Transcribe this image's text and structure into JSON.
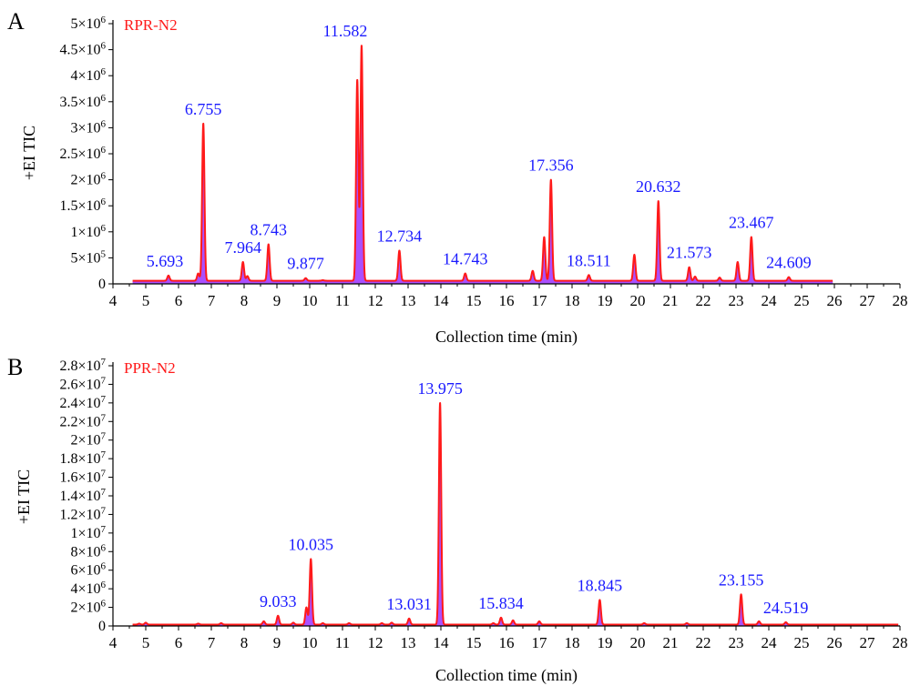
{
  "colors": {
    "trace": "#ff1a1a",
    "fill": "#9b30ff",
    "peak_label": "#1a1aff",
    "sample_label": "#ff1a1a",
    "axis": "#000000"
  },
  "chart_data": [
    {
      "type": "line",
      "panel_letter": "A",
      "sample": "RPR-N2",
      "xlabel": "Collection time (min)",
      "ylabel": "+EI TIC",
      "xlim": [
        4,
        28
      ],
      "ylim": [
        0,
        5000000
      ],
      "x_ticks": [
        4,
        5,
        6,
        7,
        8,
        9,
        10,
        11,
        12,
        13,
        14,
        15,
        16,
        17,
        18,
        19,
        20,
        21,
        22,
        23,
        24,
        25,
        26,
        27,
        28
      ],
      "x_tick_labels": [
        "4",
        "5",
        "6",
        "7",
        "8",
        "9",
        "10",
        "11",
        "12",
        "13",
        "14",
        "15",
        "16",
        "17",
        "18",
        "19",
        "20",
        "21",
        "22",
        "23",
        "24",
        "25",
        "26",
        "27",
        "28"
      ],
      "y_ticks": [
        0,
        500000,
        1000000,
        1500000,
        2000000,
        2500000,
        3000000,
        3500000,
        4000000,
        4500000,
        5000000
      ],
      "y_tick_labels": [
        {
          "mant": "0",
          "exp": ""
        },
        {
          "mant": "5×10",
          "exp": "5"
        },
        {
          "mant": "1×10",
          "exp": "6"
        },
        {
          "mant": "1.5×10",
          "exp": "6"
        },
        {
          "mant": "2×10",
          "exp": "6"
        },
        {
          "mant": "2.5×10",
          "exp": "6"
        },
        {
          "mant": "3×10",
          "exp": "6"
        },
        {
          "mant": "3.5×10",
          "exp": "6"
        },
        {
          "mant": "4×10",
          "exp": "6"
        },
        {
          "mant": "4.5×10",
          "exp": "6"
        },
        {
          "mant": "5×10",
          "exp": "6"
        }
      ],
      "trace_range": [
        4.6,
        25.95
      ],
      "baseline": 60000,
      "peaks": [
        {
          "rt": 5.693,
          "h": 160000,
          "label": "5.693"
        },
        {
          "rt": 6.6,
          "h": 200000
        },
        {
          "rt": 6.755,
          "h": 3080000,
          "label": "6.755"
        },
        {
          "rt": 7.964,
          "h": 420000,
          "label": "7.964"
        },
        {
          "rt": 8.1,
          "h": 150000
        },
        {
          "rt": 8.743,
          "h": 760000,
          "label": "8.743"
        },
        {
          "rt": 9.877,
          "h": 110000,
          "label": "9.877"
        },
        {
          "rt": 10.4,
          "h": 70000
        },
        {
          "rt": 11.45,
          "h": 3920000
        },
        {
          "rt": 11.582,
          "h": 4580000,
          "label": "11.582"
        },
        {
          "rt": 12.734,
          "h": 640000,
          "label": "12.734"
        },
        {
          "rt": 14.743,
          "h": 200000,
          "label": "14.743"
        },
        {
          "rt": 16.8,
          "h": 250000
        },
        {
          "rt": 17.15,
          "h": 900000
        },
        {
          "rt": 17.356,
          "h": 2000000,
          "label": "17.356"
        },
        {
          "rt": 18.511,
          "h": 170000,
          "label": "18.511"
        },
        {
          "rt": 19.9,
          "h": 560000
        },
        {
          "rt": 20.632,
          "h": 1590000,
          "label": "20.632"
        },
        {
          "rt": 21.573,
          "h": 320000,
          "label": "21.573"
        },
        {
          "rt": 21.75,
          "h": 140000
        },
        {
          "rt": 22.5,
          "h": 120000
        },
        {
          "rt": 23.05,
          "h": 420000
        },
        {
          "rt": 23.467,
          "h": 900000,
          "label": "23.467"
        },
        {
          "rt": 24.609,
          "h": 130000,
          "label": "24.609"
        }
      ]
    },
    {
      "type": "line",
      "panel_letter": "B",
      "sample": "PPR-N2",
      "xlabel": "Collection time (min)",
      "ylabel": "+EI TIC",
      "xlim": [
        4,
        28
      ],
      "ylim": [
        0,
        28000000
      ],
      "x_ticks": [
        4,
        5,
        6,
        7,
        8,
        9,
        10,
        11,
        12,
        13,
        14,
        15,
        16,
        17,
        18,
        19,
        20,
        21,
        22,
        23,
        24,
        25,
        26,
        27,
        28
      ],
      "x_tick_labels": [
        "4",
        "5",
        "6",
        "7",
        "8",
        "9",
        "10",
        "11",
        "12",
        "13",
        "14",
        "15",
        "16",
        "17",
        "18",
        "19",
        "20",
        "21",
        "22",
        "23",
        "24",
        "25",
        "26",
        "27",
        "28"
      ],
      "y_ticks": [
        0,
        2000000,
        4000000,
        6000000,
        8000000,
        10000000,
        12000000,
        14000000,
        16000000,
        18000000,
        20000000,
        22000000,
        24000000,
        26000000,
        28000000
      ],
      "y_tick_labels": [
        {
          "mant": "0",
          "exp": ""
        },
        {
          "mant": "2×10",
          "exp": "6"
        },
        {
          "mant": "4×10",
          "exp": "6"
        },
        {
          "mant": "6×10",
          "exp": "6"
        },
        {
          "mant": "8×10",
          "exp": "6"
        },
        {
          "mant": "1×10",
          "exp": "7"
        },
        {
          "mant": "1.2×10",
          "exp": "7"
        },
        {
          "mant": "1.4×10",
          "exp": "7"
        },
        {
          "mant": "1.6×10",
          "exp": "7"
        },
        {
          "mant": "1.8×10",
          "exp": "7"
        },
        {
          "mant": "2×10",
          "exp": "7"
        },
        {
          "mant": "2.2×10",
          "exp": "7"
        },
        {
          "mant": "2.4×10",
          "exp": "7"
        },
        {
          "mant": "2.6×10",
          "exp": "7"
        },
        {
          "mant": "2.8×10",
          "exp": "7"
        }
      ],
      "trace_range": [
        4.6,
        27.95
      ],
      "baseline": 150000,
      "peaks": [
        {
          "rt": 4.8,
          "h": 250000
        },
        {
          "rt": 5.0,
          "h": 350000
        },
        {
          "rt": 6.6,
          "h": 250000
        },
        {
          "rt": 7.3,
          "h": 300000
        },
        {
          "rt": 8.6,
          "h": 500000
        },
        {
          "rt": 9.033,
          "h": 1100000,
          "label": "9.033"
        },
        {
          "rt": 9.5,
          "h": 350000
        },
        {
          "rt": 9.9,
          "h": 2000000
        },
        {
          "rt": 10.035,
          "h": 7200000,
          "label": "10.035"
        },
        {
          "rt": 10.4,
          "h": 300000
        },
        {
          "rt": 11.2,
          "h": 300000
        },
        {
          "rt": 12.2,
          "h": 300000
        },
        {
          "rt": 12.5,
          "h": 350000
        },
        {
          "rt": 13.031,
          "h": 800000,
          "label": "13.031"
        },
        {
          "rt": 13.975,
          "h": 24000000,
          "label": "13.975"
        },
        {
          "rt": 15.6,
          "h": 300000
        },
        {
          "rt": 15.834,
          "h": 900000,
          "label": "15.834"
        },
        {
          "rt": 16.2,
          "h": 600000
        },
        {
          "rt": 17.0,
          "h": 500000
        },
        {
          "rt": 18.845,
          "h": 2800000,
          "label": "18.845"
        },
        {
          "rt": 20.2,
          "h": 300000
        },
        {
          "rt": 21.5,
          "h": 300000
        },
        {
          "rt": 23.155,
          "h": 3400000,
          "label": "23.155"
        },
        {
          "rt": 23.7,
          "h": 500000
        },
        {
          "rt": 24.519,
          "h": 400000,
          "label": "24.519"
        }
      ]
    }
  ]
}
